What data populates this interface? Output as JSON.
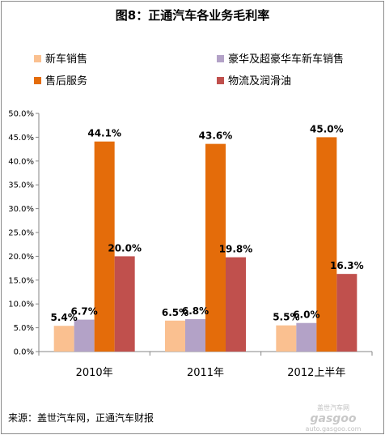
{
  "chart_data": {
    "type": "bar",
    "title": "图8：正通汽车各业务毛利率",
    "categories": [
      "2010年",
      "2011年",
      "2012上半年"
    ],
    "series": [
      {
        "name": "新车销售",
        "values": [
          5.4,
          6.5,
          5.5
        ],
        "labels": [
          "5.4%",
          "6.5%",
          "5.5%"
        ],
        "color": "#fac090"
      },
      {
        "name": "豪华及超豪华车新车销售",
        "values": [
          6.7,
          6.8,
          6.0
        ],
        "labels": [
          "6.7%",
          "6.8%",
          "6.0%"
        ],
        "color": "#b3a2c7"
      },
      {
        "name": "售后服务",
        "values": [
          44.1,
          43.6,
          45.0
        ],
        "labels": [
          "44.1%",
          "43.6%",
          "45.0%"
        ],
        "color": "#e46c0a"
      },
      {
        "name": "物流及润滑油",
        "values": [
          20.0,
          19.8,
          16.3
        ],
        "labels": [
          "20.0%",
          "19.8%",
          "16.3%"
        ],
        "color": "#c0504d"
      }
    ],
    "yticks": [
      "0.0%",
      "5.0%",
      "10.0%",
      "15.0%",
      "20.0%",
      "25.0%",
      "30.0%",
      "35.0%",
      "40.0%",
      "45.0%",
      "50.0%"
    ],
    "ylim": [
      0,
      50
    ],
    "grid": false,
    "legend": "top"
  },
  "source": "来源：盖世汽车网，正通汽车财报",
  "watermark": {
    "brand": "gasgoo",
    "tagline": "盖世汽车网",
    "url": "auto.gasgoo.com"
  }
}
